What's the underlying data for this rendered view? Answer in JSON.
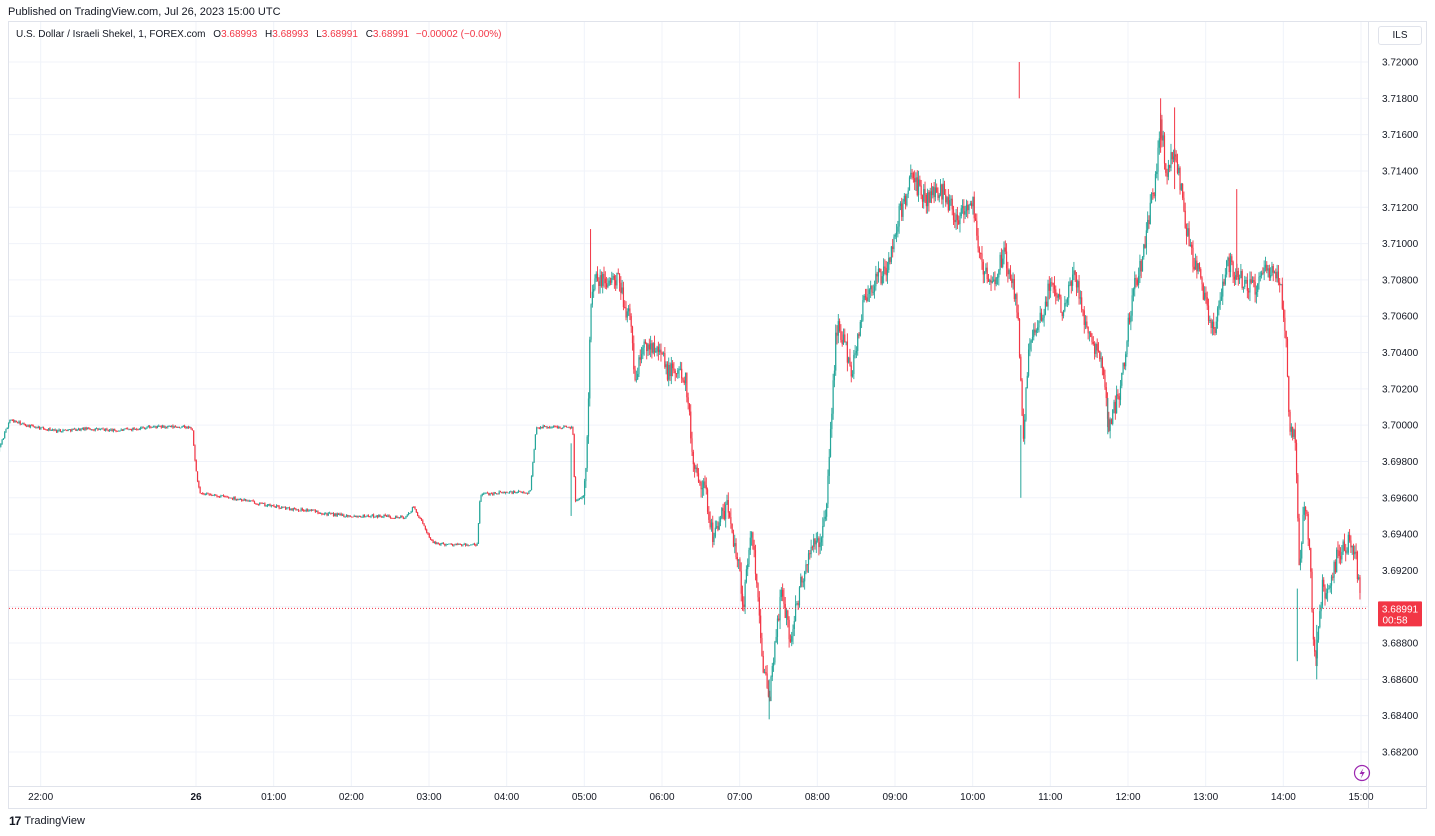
{
  "header": {
    "published": "Published on TradingView.com, Jul 26, 2023 15:00 UTC"
  },
  "legend": {
    "symbol": "U.S. Dollar / Israeli Shekel, 1, FOREX.com",
    "o_label": "O",
    "o_value": "3.68993",
    "h_label": "H",
    "h_value": "3.68993",
    "l_label": "L",
    "l_value": "3.68991",
    "c_label": "C",
    "c_value": "3.68991",
    "change": "−0.00002 (−0.00%)"
  },
  "currency_button": "ILS",
  "price_label": {
    "price": "3.68991",
    "countdown": "00:58"
  },
  "footer": {
    "brand": "TradingView",
    "mark": "17"
  },
  "colors": {
    "up": "#26a69a",
    "down": "#f23645",
    "grid": "#f0f3fa",
    "axis": "#131722"
  },
  "chart_data": {
    "type": "candlestick",
    "title": "U.S. Dollar / Israeli Shekel, 1, FOREX.com",
    "interval": "1 minute",
    "ylim": [
      3.681,
      3.722
    ],
    "y_ticks": [
      "3.72000",
      "3.71800",
      "3.71600",
      "3.71400",
      "3.71200",
      "3.71000",
      "3.70800",
      "3.70600",
      "3.70400",
      "3.70200",
      "3.70000",
      "3.69800",
      "3.69600",
      "3.69400",
      "3.69200",
      "3.69000",
      "3.68800",
      "3.68600",
      "3.68400",
      "3.68200"
    ],
    "x_ticks": [
      {
        "label": "22:00",
        "hour": -2,
        "bold": false
      },
      {
        "label": "26",
        "hour": 0,
        "bold": true
      },
      {
        "label": "01:00",
        "hour": 1,
        "bold": false
      },
      {
        "label": "02:00",
        "hour": 2,
        "bold": false
      },
      {
        "label": "03:00",
        "hour": 3,
        "bold": false
      },
      {
        "label": "04:00",
        "hour": 4,
        "bold": false
      },
      {
        "label": "05:00",
        "hour": 5,
        "bold": false
      },
      {
        "label": "06:00",
        "hour": 6,
        "bold": false
      },
      {
        "label": "07:00",
        "hour": 7,
        "bold": false
      },
      {
        "label": "08:00",
        "hour": 8,
        "bold": false
      },
      {
        "label": "09:00",
        "hour": 9,
        "bold": false
      },
      {
        "label": "10:00",
        "hour": 10,
        "bold": false
      },
      {
        "label": "11:00",
        "hour": 11,
        "bold": false
      },
      {
        "label": "12:00",
        "hour": 12,
        "bold": false
      },
      {
        "label": "13:00",
        "hour": 13,
        "bold": false
      },
      {
        "label": "14:00",
        "hour": 14,
        "bold": false
      },
      {
        "label": "15:00",
        "hour": 15,
        "bold": false
      }
    ],
    "last_price": 3.68991,
    "price_path": [
      [
        -2.83,
        3.696
      ],
      [
        -2.8,
        3.7
      ],
      [
        -2.7,
        3.7
      ],
      [
        -2.55,
        3.6985
      ],
      [
        -2.4,
        3.7003
      ],
      [
        -2.2,
        3.7
      ],
      [
        -1.8,
        3.6997
      ],
      [
        -1.4,
        3.6998
      ],
      [
        -1.0,
        3.6997
      ],
      [
        -0.6,
        3.6999
      ],
      [
        -0.15,
        3.6999
      ],
      [
        -0.05,
        3.6998
      ],
      [
        0.0,
        3.6975
      ],
      [
        0.05,
        3.6962
      ],
      [
        0.3,
        3.6961
      ],
      [
        0.6,
        3.6959
      ],
      [
        0.9,
        3.6956
      ],
      [
        1.2,
        3.6954
      ],
      [
        1.5,
        3.6953
      ],
      [
        1.7,
        3.6951
      ],
      [
        2.0,
        3.695
      ],
      [
        2.4,
        3.695
      ],
      [
        2.7,
        3.6949
      ],
      [
        2.8,
        3.6955
      ],
      [
        3.05,
        3.6935
      ],
      [
        3.4,
        3.6934
      ],
      [
        3.62,
        3.6934
      ],
      [
        3.66,
        3.6962
      ],
      [
        4.0,
        3.6963
      ],
      [
        4.3,
        3.6963
      ],
      [
        4.38,
        3.6999
      ],
      [
        4.7,
        3.6999
      ],
      [
        4.85,
        3.6999
      ],
      [
        4.88,
        3.6958
      ],
      [
        5.0,
        3.6962
      ],
      [
        5.04,
        3.7
      ],
      [
        5.08,
        3.706
      ],
      [
        5.12,
        3.7078
      ],
      [
        5.3,
        3.708
      ],
      [
        5.45,
        3.7078
      ],
      [
        5.6,
        3.7055
      ],
      [
        5.65,
        3.7025
      ],
      [
        5.75,
        3.7042
      ],
      [
        5.95,
        3.7046
      ],
      [
        6.05,
        3.703
      ],
      [
        6.3,
        3.7028
      ],
      [
        6.4,
        3.698
      ],
      [
        6.55,
        3.6965
      ],
      [
        6.65,
        3.694
      ],
      [
        6.85,
        3.6955
      ],
      [
        7.0,
        3.692
      ],
      [
        7.05,
        3.69
      ],
      [
        7.15,
        3.6945
      ],
      [
        7.25,
        3.69
      ],
      [
        7.3,
        3.687
      ],
      [
        7.38,
        3.6845
      ],
      [
        7.45,
        3.688
      ],
      [
        7.55,
        3.691
      ],
      [
        7.65,
        3.688
      ],
      [
        7.75,
        3.6905
      ],
      [
        7.9,
        3.693
      ],
      [
        8.0,
        3.6935
      ],
      [
        8.1,
        3.6945
      ],
      [
        8.15,
        3.698
      ],
      [
        8.2,
        3.702
      ],
      [
        8.25,
        3.7055
      ],
      [
        8.35,
        3.7045
      ],
      [
        8.45,
        3.703
      ],
      [
        8.6,
        3.707
      ],
      [
        8.75,
        3.708
      ],
      [
        8.9,
        3.7085
      ],
      [
        9.05,
        3.7115
      ],
      [
        9.2,
        3.7135
      ],
      [
        9.4,
        3.7125
      ],
      [
        9.6,
        3.713
      ],
      [
        9.8,
        3.7115
      ],
      [
        10.0,
        3.7125
      ],
      [
        10.1,
        3.709
      ],
      [
        10.25,
        3.7075
      ],
      [
        10.4,
        3.7095
      ],
      [
        10.5,
        3.708
      ],
      [
        10.58,
        3.706
      ],
      [
        10.65,
        3.6995
      ],
      [
        10.72,
        3.704
      ],
      [
        10.9,
        3.706
      ],
      [
        11.0,
        3.708
      ],
      [
        11.15,
        3.7065
      ],
      [
        11.3,
        3.7085
      ],
      [
        11.4,
        3.7065
      ],
      [
        11.55,
        3.7045
      ],
      [
        11.65,
        3.704
      ],
      [
        11.75,
        3.7
      ],
      [
        11.9,
        3.702
      ],
      [
        12.05,
        3.707
      ],
      [
        12.2,
        3.7095
      ],
      [
        12.35,
        3.7135
      ],
      [
        12.42,
        3.7165
      ],
      [
        12.5,
        3.714
      ],
      [
        12.6,
        3.715
      ],
      [
        12.7,
        3.7125
      ],
      [
        12.8,
        3.7095
      ],
      [
        12.9,
        3.7085
      ],
      [
        13.0,
        3.707
      ],
      [
        13.1,
        3.705
      ],
      [
        13.2,
        3.7075
      ],
      [
        13.3,
        3.709
      ],
      [
        13.45,
        3.708
      ],
      [
        13.6,
        3.7075
      ],
      [
        13.8,
        3.7085
      ],
      [
        13.95,
        3.708
      ],
      [
        14.03,
        3.705
      ],
      [
        14.07,
        3.7005
      ],
      [
        14.12,
        3.6995
      ],
      [
        14.16,
        3.6995
      ],
      [
        14.2,
        3.692
      ],
      [
        14.27,
        3.6955
      ],
      [
        14.33,
        3.694
      ],
      [
        14.4,
        3.687
      ],
      [
        14.45,
        3.6885
      ],
      [
        14.5,
        3.691
      ],
      [
        14.6,
        3.691
      ],
      [
        14.7,
        3.693
      ],
      [
        14.85,
        3.6935
      ],
      [
        14.93,
        3.693
      ],
      [
        15.0,
        3.6899
      ]
    ],
    "spikes": [
      [
        5.08,
        3.7108,
        3.707
      ],
      [
        4.83,
        3.695,
        3.699
      ],
      [
        10.62,
        3.696,
        3.7
      ],
      [
        11.74,
        3.6995,
        3.7015
      ],
      [
        12.42,
        3.718,
        3.715
      ],
      [
        12.6,
        3.7175,
        3.713
      ],
      [
        13.4,
        3.713,
        3.708
      ],
      [
        14.18,
        3.687,
        3.691
      ],
      [
        14.43,
        3.686,
        3.689
      ],
      [
        7.38,
        3.6838,
        3.686
      ],
      [
        10.6,
        3.72,
        3.718
      ]
    ]
  }
}
